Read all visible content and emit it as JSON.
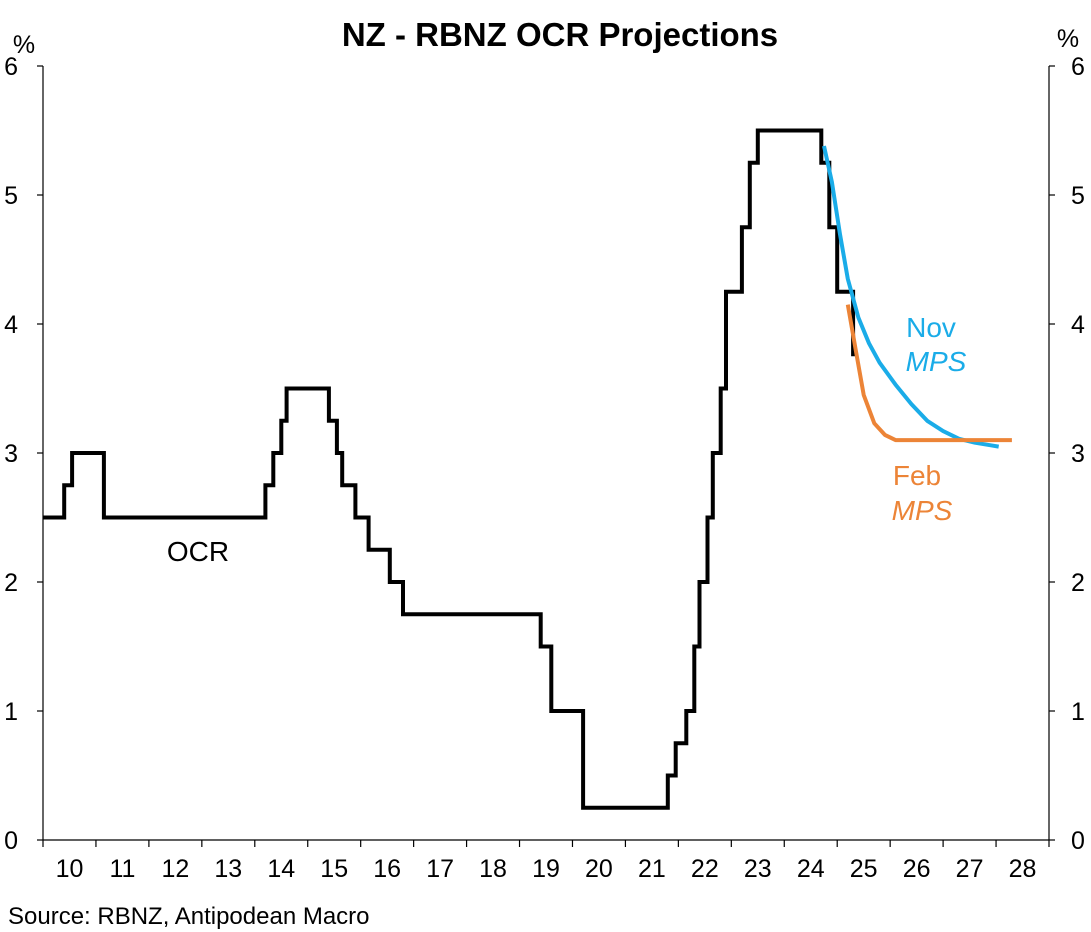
{
  "chart_data": {
    "type": "line",
    "title": "NZ - RBNZ OCR Projections",
    "y_unit_left": "%",
    "y_unit_right": "%",
    "source": "Source: RBNZ, Antipodean Macro",
    "xlim": [
      10,
      29
    ],
    "ylim": [
      0,
      6
    ],
    "x_ticks": [
      "10",
      "11",
      "12",
      "13",
      "14",
      "15",
      "16",
      "17",
      "18",
      "19",
      "20",
      "21",
      "22",
      "23",
      "24",
      "25",
      "26",
      "27",
      "28"
    ],
    "y_ticks": [
      "0",
      "1",
      "2",
      "3",
      "4",
      "5",
      "6"
    ],
    "grid": false,
    "annotations": {
      "ocr": "OCR",
      "nov_line1": "Nov",
      "nov_line2": "MPS",
      "feb_line1": "Feb",
      "feb_line2": "MPS"
    },
    "colors": {
      "ocr": "#000000",
      "nov": "#1aace8",
      "feb": "#ec8437"
    },
    "series": [
      {
        "key": "ocr",
        "step": true,
        "points": [
          [
            10.0,
            2.5
          ],
          [
            10.4,
            2.5
          ],
          [
            10.4,
            2.75
          ],
          [
            10.55,
            2.75
          ],
          [
            10.55,
            3.0
          ],
          [
            11.15,
            3.0
          ],
          [
            11.15,
            2.5
          ],
          [
            14.2,
            2.5
          ],
          [
            14.2,
            2.75
          ],
          [
            14.35,
            2.75
          ],
          [
            14.35,
            3.0
          ],
          [
            14.5,
            3.0
          ],
          [
            14.5,
            3.25
          ],
          [
            14.6,
            3.25
          ],
          [
            14.6,
            3.5
          ],
          [
            15.4,
            3.5
          ],
          [
            15.4,
            3.25
          ],
          [
            15.55,
            3.25
          ],
          [
            15.55,
            3.0
          ],
          [
            15.65,
            3.0
          ],
          [
            15.65,
            2.75
          ],
          [
            15.9,
            2.75
          ],
          [
            15.9,
            2.5
          ],
          [
            16.15,
            2.5
          ],
          [
            16.15,
            2.25
          ],
          [
            16.55,
            2.25
          ],
          [
            16.55,
            2.0
          ],
          [
            16.8,
            2.0
          ],
          [
            16.8,
            1.75
          ],
          [
            19.4,
            1.75
          ],
          [
            19.4,
            1.5
          ],
          [
            19.6,
            1.5
          ],
          [
            19.6,
            1.0
          ],
          [
            20.2,
            1.0
          ],
          [
            20.2,
            0.25
          ],
          [
            21.8,
            0.25
          ],
          [
            21.8,
            0.5
          ],
          [
            21.95,
            0.5
          ],
          [
            21.95,
            0.75
          ],
          [
            22.15,
            0.75
          ],
          [
            22.15,
            1.0
          ],
          [
            22.3,
            1.0
          ],
          [
            22.3,
            1.5
          ],
          [
            22.4,
            1.5
          ],
          [
            22.4,
            2.0
          ],
          [
            22.55,
            2.0
          ],
          [
            22.55,
            2.5
          ],
          [
            22.65,
            2.5
          ],
          [
            22.65,
            3.0
          ],
          [
            22.8,
            3.0
          ],
          [
            22.8,
            3.5
          ],
          [
            22.9,
            3.5
          ],
          [
            22.9,
            4.25
          ],
          [
            23.2,
            4.25
          ],
          [
            23.2,
            4.75
          ],
          [
            23.35,
            4.75
          ],
          [
            23.35,
            5.25
          ],
          [
            23.5,
            5.25
          ],
          [
            23.5,
            5.5
          ],
          [
            24.7,
            5.5
          ],
          [
            24.7,
            5.25
          ],
          [
            24.85,
            5.25
          ],
          [
            24.85,
            4.75
          ],
          [
            25.0,
            4.75
          ],
          [
            25.0,
            4.25
          ],
          [
            25.3,
            4.25
          ],
          [
            25.3,
            3.75
          ]
        ]
      },
      {
        "key": "nov",
        "name": "Nov MPS",
        "points": [
          [
            24.75,
            5.38
          ],
          [
            24.9,
            5.1
          ],
          [
            25.05,
            4.7
          ],
          [
            25.2,
            4.35
          ],
          [
            25.4,
            4.05
          ],
          [
            25.6,
            3.85
          ],
          [
            25.8,
            3.7
          ],
          [
            26.1,
            3.53
          ],
          [
            26.4,
            3.38
          ],
          [
            26.7,
            3.25
          ],
          [
            27.0,
            3.17
          ],
          [
            27.3,
            3.11
          ],
          [
            27.6,
            3.08
          ],
          [
            27.9,
            3.06
          ],
          [
            28.05,
            3.05
          ]
        ]
      },
      {
        "key": "feb",
        "name": "Feb MPS",
        "points": [
          [
            25.2,
            4.15
          ],
          [
            25.35,
            3.8
          ],
          [
            25.5,
            3.45
          ],
          [
            25.7,
            3.23
          ],
          [
            25.9,
            3.14
          ],
          [
            26.1,
            3.1
          ],
          [
            26.5,
            3.1
          ],
          [
            27.0,
            3.1
          ],
          [
            27.5,
            3.1
          ],
          [
            28.0,
            3.1
          ],
          [
            28.3,
            3.1
          ]
        ]
      }
    ]
  }
}
